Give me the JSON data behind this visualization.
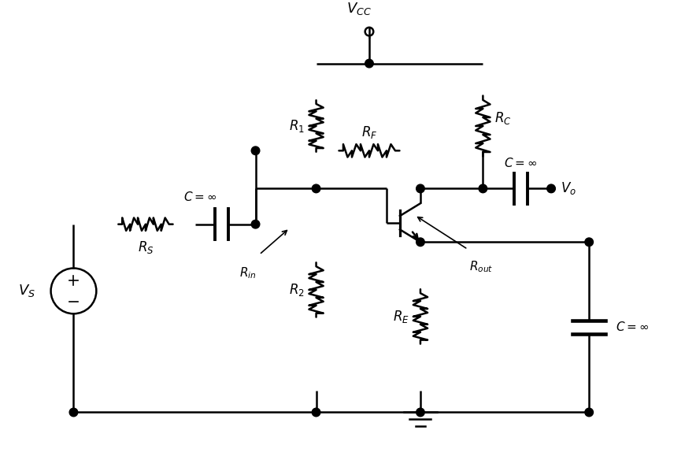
{
  "bg_color": "#ffffff",
  "line_color": "#000000",
  "lw": 1.8,
  "fs": 13,
  "labels": {
    "VCC": "$V_{CC}$",
    "VS": "$V_S$",
    "RS": "$R_S$",
    "RF": "$R_F$",
    "R1": "$R_1$",
    "R2": "$R_2$",
    "RC": "$R_C$",
    "RE": "$R_E$",
    "Rin": "$R_{in}$",
    "Rout": "$R_{out}$",
    "Vo": "$V_o$",
    "Cinf1": "$C=\\infty$",
    "Cinf2": "$C=\\infty$",
    "Cinf3": "$C=\\infty$"
  }
}
